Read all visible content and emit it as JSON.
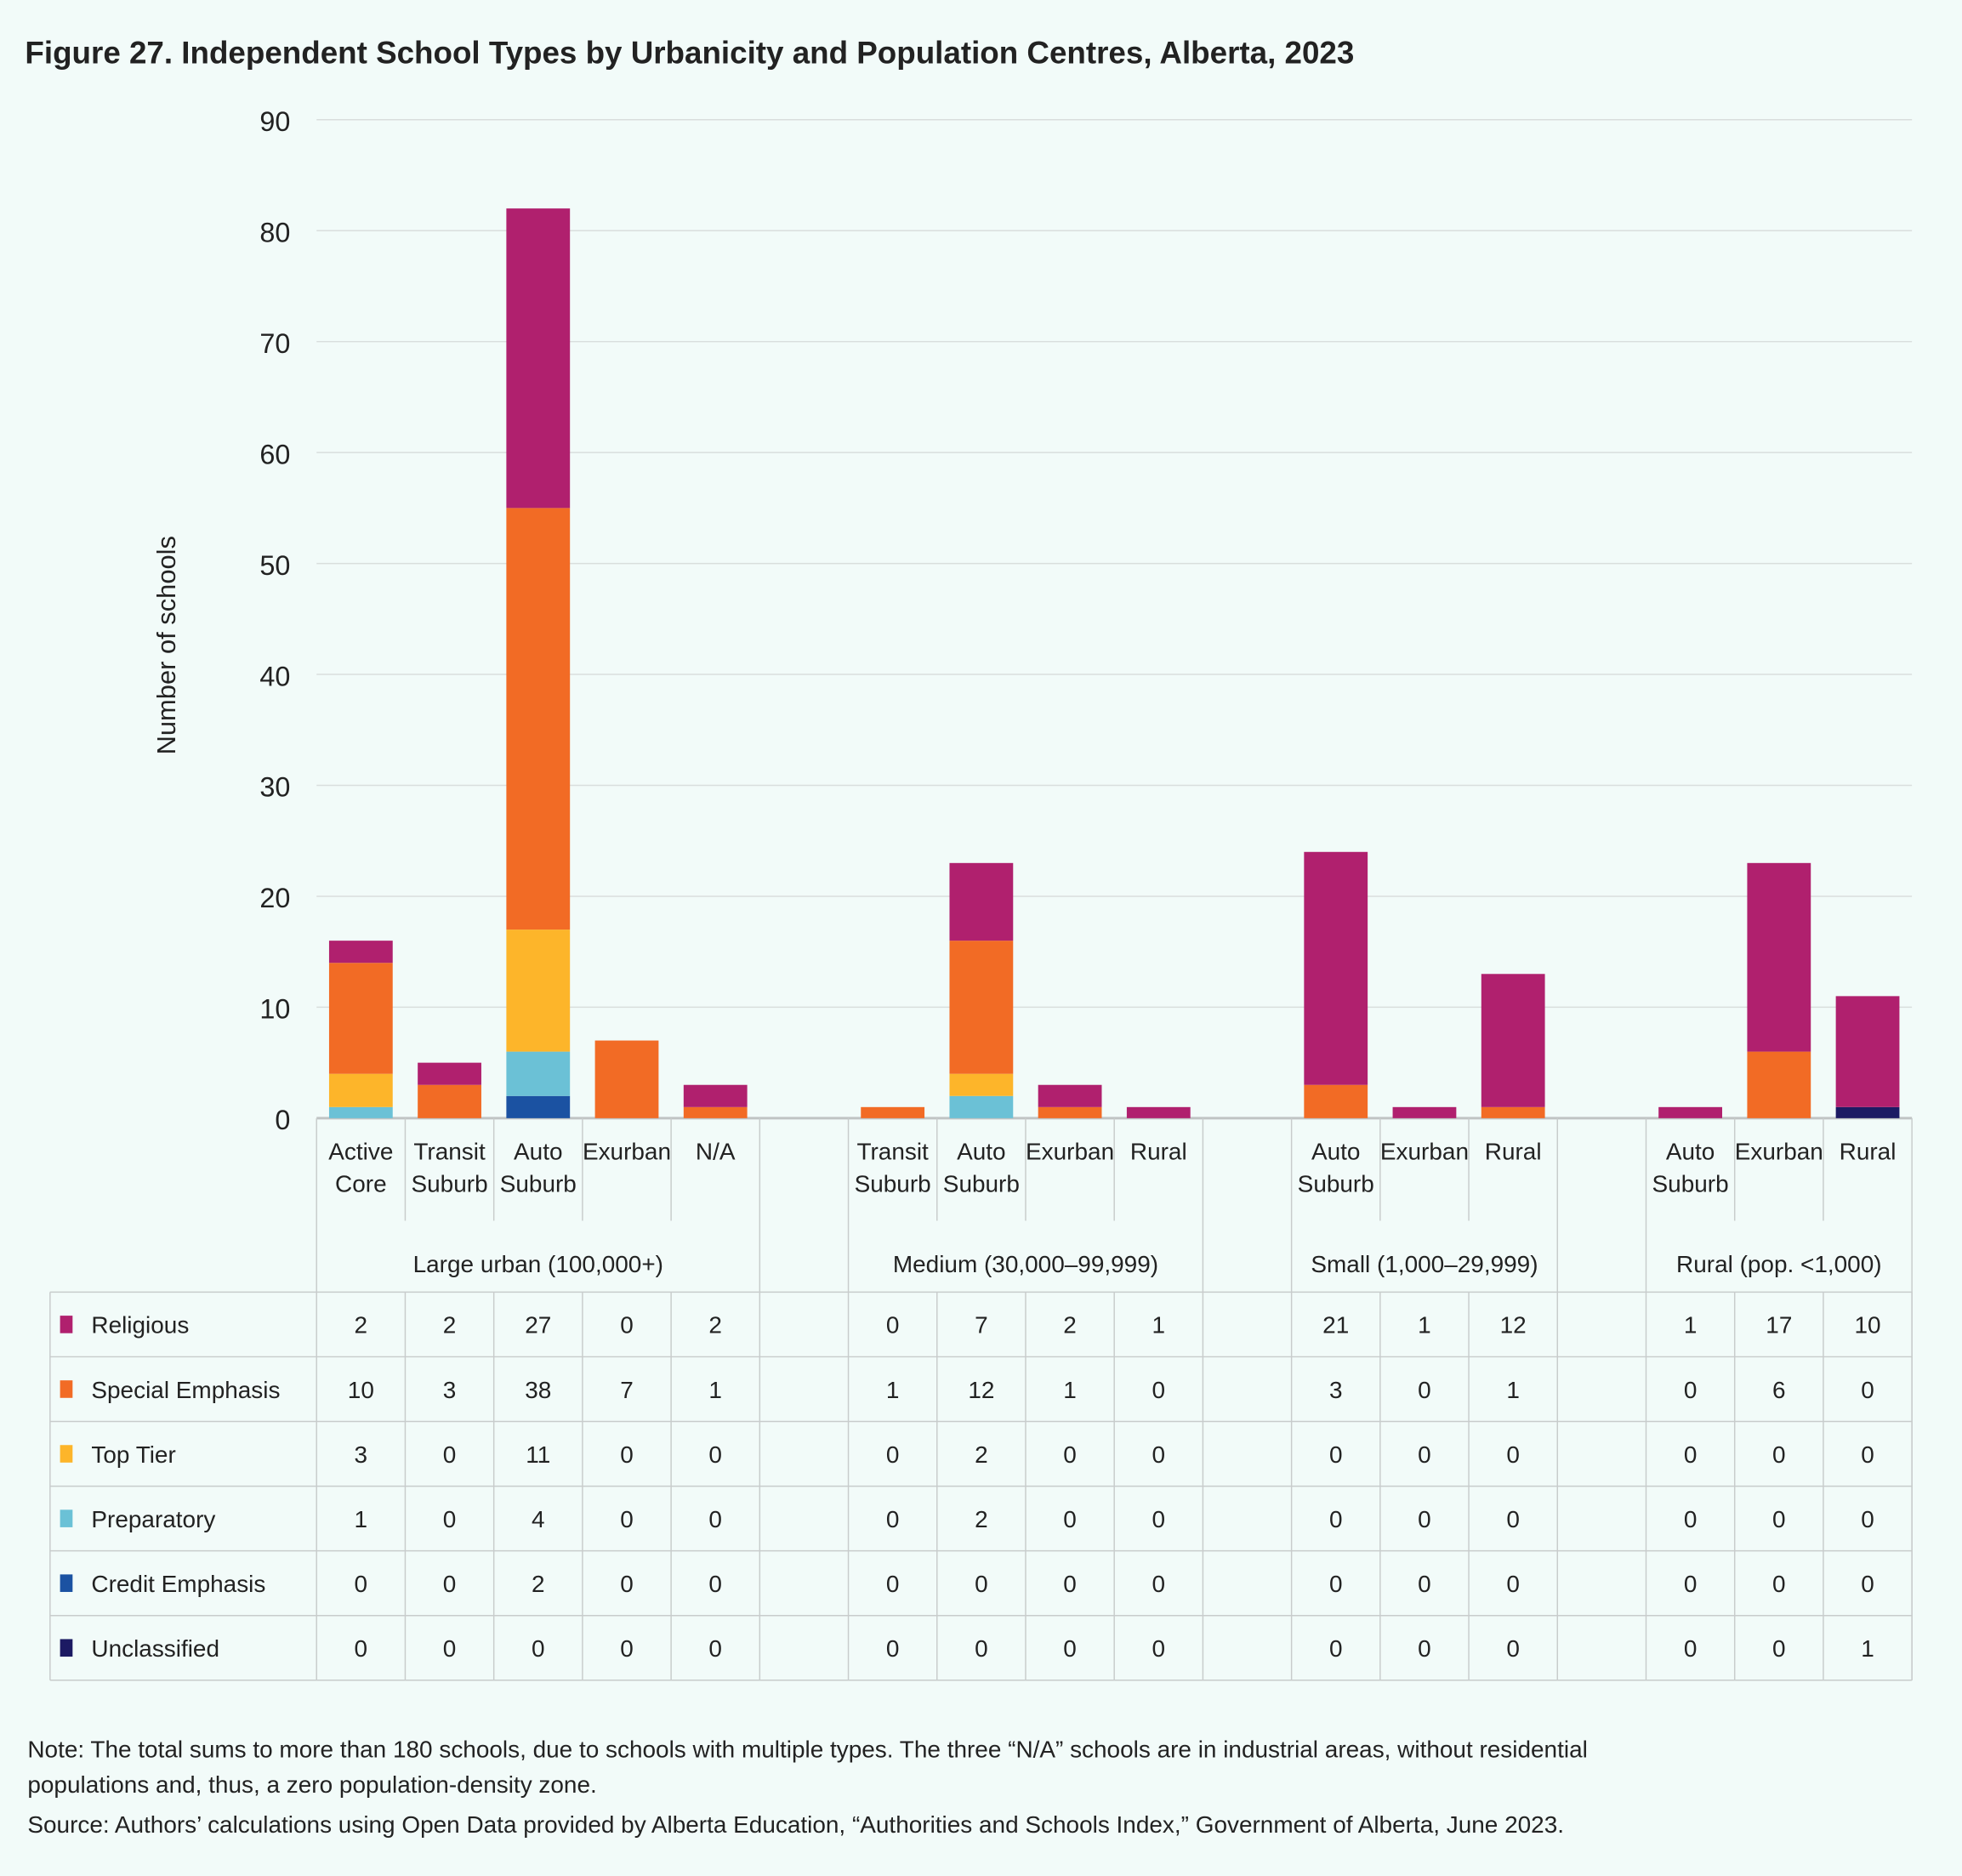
{
  "chart_data": {
    "type": "bar",
    "stacked": true,
    "title": "Figure 27. Independent School Types by Urbanicity and Population Centres, Alberta, 2023",
    "ylabel": "Number of schools",
    "xlabel": "",
    "ylim": [
      0,
      90
    ],
    "yticks": [
      "0",
      "10",
      "20",
      "30",
      "40",
      "50",
      "60",
      "70",
      "80",
      "90"
    ],
    "grid": true,
    "legend": "table-left",
    "groups": [
      {
        "name": "Large urban (100,000+)",
        "categories": [
          "Active Core",
          "Transit Suburb",
          "Auto Suburb",
          "Exurban",
          "N/A"
        ]
      },
      {
        "name": "Medium (30,000–99,999)",
        "categories": [
          "Transit Suburb",
          "Auto Suburb",
          "Exurban",
          "Rural"
        ]
      },
      {
        "name": "Small (1,000–29,999)",
        "categories": [
          "Auto Suburb",
          "Exurban",
          "Rural"
        ]
      },
      {
        "name": "Rural (pop. <1,000)",
        "categories": [
          "Auto Suburb",
          "Exurban",
          "Rural"
        ]
      }
    ],
    "series": [
      {
        "name": "Religious",
        "color": "#B0206E",
        "values": [
          2,
          2,
          27,
          0,
          2,
          0,
          7,
          2,
          1,
          21,
          1,
          12,
          1,
          17,
          10
        ]
      },
      {
        "name": "Special Emphasis",
        "color": "#F26B25",
        "values": [
          10,
          3,
          38,
          7,
          1,
          1,
          12,
          1,
          0,
          3,
          0,
          1,
          0,
          6,
          0
        ]
      },
      {
        "name": "Top Tier",
        "color": "#FDB52A",
        "values": [
          3,
          0,
          11,
          0,
          0,
          0,
          2,
          0,
          0,
          0,
          0,
          0,
          0,
          0,
          0
        ]
      },
      {
        "name": "Preparatory",
        "color": "#6BC1D6",
        "values": [
          1,
          0,
          4,
          0,
          0,
          0,
          2,
          0,
          0,
          0,
          0,
          0,
          0,
          0,
          0
        ]
      },
      {
        "name": "Credit Emphasis",
        "color": "#1B52A2",
        "values": [
          0,
          0,
          2,
          0,
          0,
          0,
          0,
          0,
          0,
          0,
          0,
          0,
          0,
          0,
          0
        ]
      },
      {
        "name": "Unclassified",
        "color": "#1C1A63",
        "values": [
          0,
          0,
          0,
          0,
          0,
          0,
          0,
          0,
          0,
          0,
          0,
          0,
          0,
          0,
          1
        ]
      }
    ]
  },
  "notes": {
    "line1": "Note: The total sums to more than 180 schools, due to schools with multiple types. The three “N/A” schools are in industrial areas, without residential",
    "line2": "populations and, thus, a zero population-density zone.",
    "line3": "Source: Authors’ calculations using Open Data provided by Alberta Education, “Authorities and Schools Index,” Government of Alberta, June 2023."
  }
}
